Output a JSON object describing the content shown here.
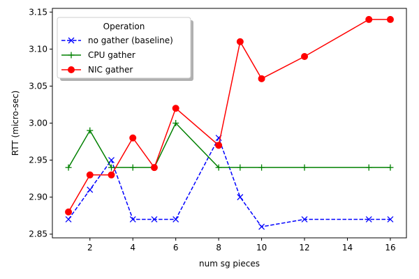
{
  "chart_data": {
    "type": "line",
    "title": "",
    "xlabel": "num sg pieces",
    "ylabel": "RTT (micro-sec)",
    "xlim": [
      0.25,
      16.75
    ],
    "ylim": [
      2.845,
      3.155
    ],
    "xticks": [
      2,
      4,
      6,
      8,
      10,
      12,
      14,
      16
    ],
    "yticks": [
      2.85,
      2.9,
      2.95,
      3.0,
      3.05,
      3.1,
      3.15
    ],
    "grid": false,
    "legend": {
      "title": "Operation",
      "placement": "top-left"
    },
    "series": [
      {
        "name": "no gather (baseline)",
        "color": "#0000ff",
        "linestyle": "dashed",
        "marker": "x",
        "points": [
          [
            1,
            2.87
          ],
          [
            2,
            2.91
          ],
          [
            3,
            2.95
          ],
          [
            4,
            2.87
          ],
          [
            5,
            2.87
          ],
          [
            6,
            2.87
          ],
          [
            8,
            2.98
          ],
          [
            9,
            2.9
          ],
          [
            10,
            2.86
          ],
          [
            12,
            2.87
          ],
          [
            15,
            2.87
          ],
          [
            16,
            2.87
          ]
        ]
      },
      {
        "name": "CPU gather",
        "color": "#008000",
        "linestyle": "solid",
        "marker": "+",
        "points": [
          [
            1,
            2.94
          ],
          [
            2,
            2.99
          ],
          [
            3,
            2.94
          ],
          [
            4,
            2.94
          ],
          [
            5,
            2.94
          ],
          [
            6,
            3.0
          ],
          [
            8,
            2.94
          ],
          [
            9,
            2.94
          ],
          [
            10,
            2.94
          ],
          [
            12,
            2.94
          ],
          [
            15,
            2.94
          ],
          [
            16,
            2.94
          ]
        ]
      },
      {
        "name": "NIC gather",
        "color": "#ff0000",
        "linestyle": "solid",
        "marker": "o",
        "points": [
          [
            1,
            2.88
          ],
          [
            2,
            2.93
          ],
          [
            3,
            2.93
          ],
          [
            4,
            2.98
          ],
          [
            5,
            2.94
          ],
          [
            6,
            3.02
          ],
          [
            8,
            2.97
          ],
          [
            9,
            3.11
          ],
          [
            10,
            3.06
          ],
          [
            12,
            3.09
          ],
          [
            15,
            3.14
          ],
          [
            16,
            3.14
          ]
        ]
      }
    ]
  }
}
